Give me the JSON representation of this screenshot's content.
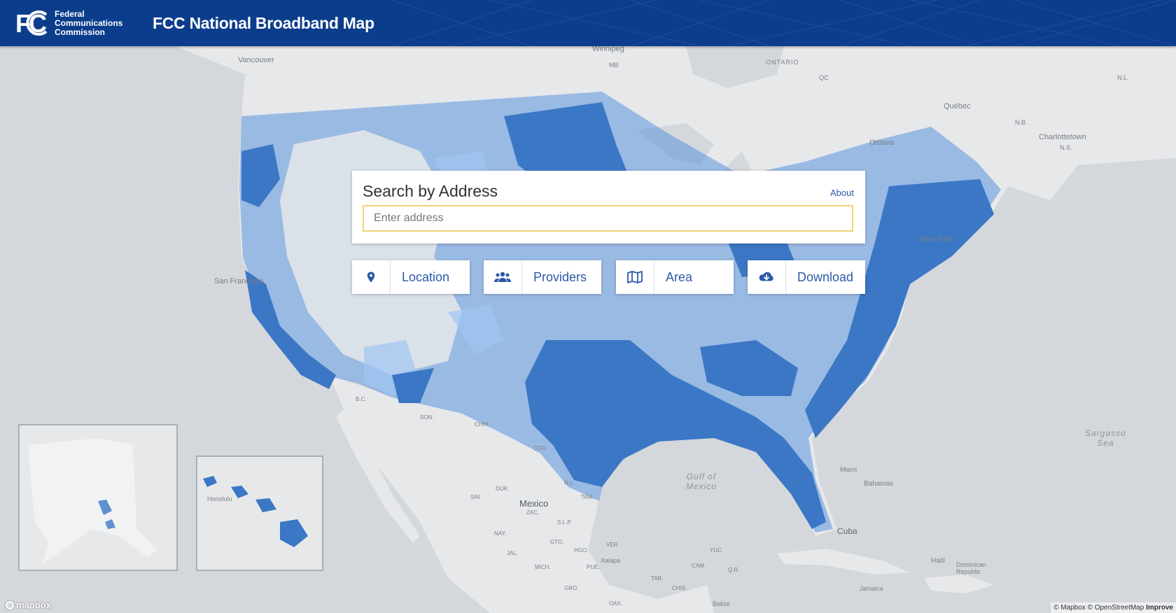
{
  "header": {
    "agency_lines": [
      "Federal",
      "Communications",
      "Commission"
    ],
    "site_title": "FCC National Broadband Map"
  },
  "search": {
    "title": "Search by Address",
    "about_label": "About",
    "placeholder": "Enter address"
  },
  "nav": [
    {
      "label": "Location",
      "icon": "map-pin-icon"
    },
    {
      "label": "Providers",
      "icon": "users-icon"
    },
    {
      "label": "Area",
      "icon": "map-icon"
    },
    {
      "label": "Download",
      "icon": "cloud-download-icon"
    }
  ],
  "map_labels": {
    "vancouver": "Vancouver",
    "winnipeg": "Winnipeg",
    "ontario": "ONTARIO",
    "quebec": "Québec",
    "ottawa": "Ottawa",
    "charlottetown": "Charlottetown",
    "ns": "N.S.",
    "nb": "N.B.",
    "nl": "N.L.",
    "new_york": "New York",
    "san_francisco": "San Francisco",
    "mexico": "Mexico",
    "gulf": "Gulf of\nMexico",
    "sargasso": "Sargasso\nSea",
    "bahamas": "Bahamas",
    "cuba": "Cuba",
    "haiti": "Haiti",
    "dominican_republic": "Dominican\nRepublic",
    "jamaica": "Jamaica",
    "belize": "Belize",
    "honolulu": "Honolulu",
    "miami": "Miami",
    "son": "SON.",
    "chih": "CHIH.",
    "coa": "COA.",
    "nl_mx": "N.L.",
    "tam": "TAM.",
    "dur": "DUR.",
    "sin": "SIN.",
    "zac": "ZAC.",
    "slp": "S.L.P.",
    "nay": "NAY.",
    "jal": "JAL.",
    "mich": "MICH.",
    "gto": "GTO.",
    "hgo": "HGO.",
    "ver": "VER.",
    "pue": "PUE.",
    "gro": "GRO.",
    "oax": "OAX.",
    "chis": "CHIS.",
    "camp": "CAM.",
    "yuc": "YUC.",
    "qroo": "Q.R.",
    "tab": "TAB.",
    "xalapa": "Xalapa",
    "bc": "B.C.",
    "mb": "MB",
    "qc": "QC"
  },
  "attribution": {
    "mapbox_logo": "mapbox",
    "text": "© Mapbox © OpenStreetMap",
    "improve": "Improve"
  },
  "colors": {
    "header_bg": "#0c3d8c",
    "coverage_dark": "#3b77c5",
    "coverage_mid": "#5a93dc",
    "coverage_light": "#9fc6f2",
    "land": "#e6e8ea",
    "water": "#d4d7db",
    "link": "#2b5aa8"
  }
}
